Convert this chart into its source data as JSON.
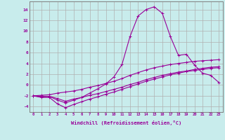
{
  "xlabel": "Windchill (Refroidissement éolien,°C)",
  "bg_color": "#c8ecec",
  "grid_color": "#b0b0b0",
  "line_color": "#990099",
  "xlim": [
    -0.5,
    23.5
  ],
  "ylim": [
    -5,
    15.5
  ],
  "xticks": [
    0,
    1,
    2,
    3,
    4,
    5,
    6,
    7,
    8,
    9,
    10,
    11,
    12,
    13,
    14,
    15,
    16,
    17,
    18,
    19,
    20,
    21,
    22,
    23
  ],
  "yticks": [
    -4,
    -2,
    0,
    2,
    4,
    6,
    8,
    10,
    12,
    14
  ],
  "series": {
    "line_main": {
      "x": [
        0,
        1,
        2,
        3,
        4,
        5,
        6,
        7,
        8,
        9,
        10,
        11,
        12,
        13,
        14,
        15,
        16,
        17,
        18,
        19,
        20,
        21,
        22,
        23
      ],
      "y": [
        -2,
        -2.2,
        -2.1,
        -2.8,
        -3.3,
        -2.8,
        -2.3,
        -1.5,
        -0.7,
        0.2,
        1.5,
        3.8,
        9.0,
        12.8,
        14.0,
        14.5,
        13.3,
        9.0,
        5.5,
        5.7,
        3.7,
        2.2,
        1.8,
        0.5
      ]
    },
    "line_upper": {
      "x": [
        0,
        1,
        2,
        3,
        4,
        5,
        6,
        7,
        8,
        9,
        10,
        11,
        12,
        13,
        14,
        15,
        16,
        17,
        18,
        19,
        20,
        21,
        22,
        23
      ],
      "y": [
        -2,
        -1.9,
        -1.8,
        -1.5,
        -1.3,
        -1.1,
        -0.8,
        -0.4,
        -0.1,
        0.3,
        0.7,
        1.2,
        1.8,
        2.3,
        2.8,
        3.2,
        3.5,
        3.8,
        4.0,
        4.2,
        4.4,
        4.5,
        4.6,
        4.7
      ]
    },
    "line_mid": {
      "x": [
        0,
        1,
        2,
        3,
        4,
        5,
        6,
        7,
        8,
        9,
        10,
        11,
        12,
        13,
        14,
        15,
        16,
        17,
        18,
        19,
        20,
        21,
        22,
        23
      ],
      "y": [
        -2,
        -2.1,
        -2.1,
        -2.5,
        -3.0,
        -2.6,
        -2.3,
        -1.9,
        -1.6,
        -1.2,
        -0.8,
        -0.4,
        0.1,
        0.5,
        1.0,
        1.4,
        1.8,
        2.1,
        2.4,
        2.6,
        2.9,
        3.1,
        3.3,
        3.4
      ]
    },
    "line_lower": {
      "x": [
        0,
        1,
        2,
        3,
        4,
        5,
        6,
        7,
        8,
        9,
        10,
        11,
        12,
        13,
        14,
        15,
        16,
        17,
        18,
        19,
        20,
        21,
        22,
        23
      ],
      "y": [
        -2,
        -2.3,
        -2.3,
        -3.5,
        -4.2,
        -3.6,
        -3.1,
        -2.6,
        -2.2,
        -1.7,
        -1.3,
        -0.8,
        -0.3,
        0.2,
        0.7,
        1.1,
        1.5,
        1.9,
        2.2,
        2.5,
        2.7,
        2.9,
        3.1,
        3.2
      ]
    }
  }
}
